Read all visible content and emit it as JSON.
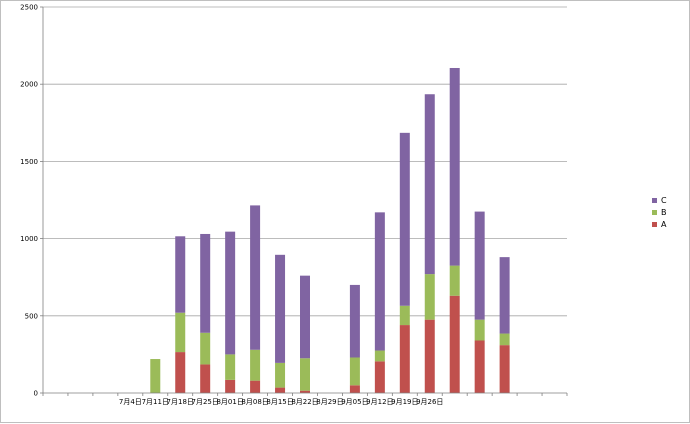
{
  "chart_data": {
    "type": "bar",
    "stacked": true,
    "categories": [
      "",
      "",
      "",
      "7月4日",
      "7月11日",
      "7月18日",
      "7月25日",
      "8月01日",
      "8月08日",
      "8月15日",
      "8月22日",
      "8月29日",
      "9月05日",
      "9月12日",
      "9月19日",
      "9月26日",
      "",
      "",
      "",
      "",
      ""
    ],
    "series": [
      {
        "name": "A",
        "color": "#c0504d",
        "values": [
          0,
          0,
          0,
          0,
          0,
          265,
          185,
          85,
          80,
          35,
          15,
          0,
          50,
          205,
          440,
          475,
          630,
          340,
          310,
          0,
          0
        ]
      },
      {
        "name": "B",
        "color": "#9bbb59",
        "values": [
          0,
          0,
          0,
          0,
          220,
          255,
          205,
          165,
          200,
          160,
          210,
          0,
          180,
          70,
          125,
          295,
          195,
          135,
          75,
          0,
          0
        ]
      },
      {
        "name": "C",
        "color": "#8064a2",
        "values": [
          0,
          0,
          0,
          0,
          0,
          495,
          640,
          795,
          935,
          700,
          535,
          0,
          470,
          895,
          1120,
          1165,
          1280,
          700,
          495,
          0,
          0
        ]
      }
    ],
    "ylim": [
      0,
      2500
    ],
    "yticks": [
      "0",
      "500",
      "1000",
      "1500",
      "2000",
      "2500"
    ],
    "grid": true,
    "legend": "right",
    "legend_order": [
      "C",
      "B",
      "A"
    ]
  }
}
